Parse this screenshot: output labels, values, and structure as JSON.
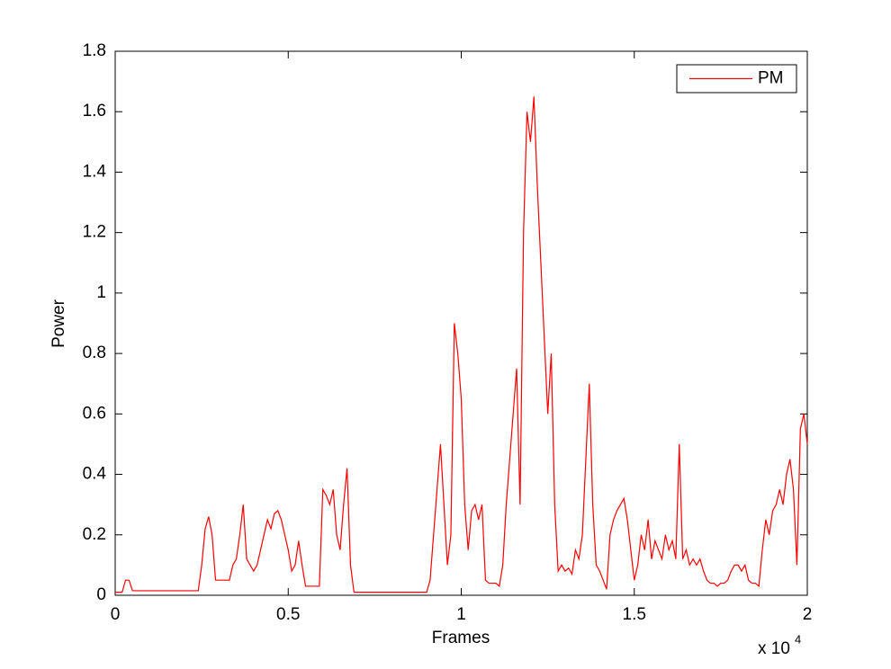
{
  "chart_data": {
    "type": "line",
    "xlabel": "Frames",
    "ylabel": "Power",
    "x_multiplier": {
      "base": "x 10",
      "exponent": "4"
    },
    "x": [
      0,
      0.01,
      0.02,
      0.03,
      0.04,
      0.05,
      0.06,
      0.07,
      0.08,
      0.09,
      0.1,
      0.11,
      0.12,
      0.13,
      0.14,
      0.15,
      0.16,
      0.17,
      0.18,
      0.19,
      0.2,
      0.21,
      0.22,
      0.23,
      0.24,
      0.25,
      0.26,
      0.27,
      0.28,
      0.29,
      0.3,
      0.31,
      0.32,
      0.33,
      0.34,
      0.35,
      0.36,
      0.37,
      0.38,
      0.39,
      0.4,
      0.41,
      0.42,
      0.43,
      0.44,
      0.45,
      0.46,
      0.47,
      0.48,
      0.49,
      0.5,
      0.51,
      0.52,
      0.53,
      0.54,
      0.55,
      0.56,
      0.57,
      0.58,
      0.59,
      0.6,
      0.61,
      0.62,
      0.63,
      0.64,
      0.65,
      0.66,
      0.67,
      0.68,
      0.69,
      0.7,
      0.71,
      0.72,
      0.73,
      0.74,
      0.75,
      0.76,
      0.77,
      0.78,
      0.79,
      0.8,
      0.81,
      0.82,
      0.83,
      0.84,
      0.85,
      0.86,
      0.87,
      0.88,
      0.89,
      0.9,
      0.91,
      0.92,
      0.93,
      0.94,
      0.95,
      0.96,
      0.97,
      0.98,
      0.99,
      1,
      1.01,
      1.02,
      1.03,
      1.04,
      1.05,
      1.06,
      1.07,
      1.08,
      1.09,
      1.1,
      1.11,
      1.12,
      1.13,
      1.14,
      1.15,
      1.16,
      1.17,
      1.18,
      1.19,
      1.2,
      1.21,
      1.22,
      1.23,
      1.24,
      1.25,
      1.26,
      1.27,
      1.28,
      1.29,
      1.3,
      1.31,
      1.32,
      1.33,
      1.34,
      1.35,
      1.36,
      1.37,
      1.38,
      1.39,
      1.4,
      1.41,
      1.42,
      1.43,
      1.44,
      1.45,
      1.46,
      1.47,
      1.48,
      1.49,
      1.5,
      1.51,
      1.52,
      1.53,
      1.54,
      1.55,
      1.56,
      1.57,
      1.58,
      1.59,
      1.6,
      1.61,
      1.62,
      1.63,
      1.64,
      1.65,
      1.66,
      1.67,
      1.68,
      1.69,
      1.7,
      1.71,
      1.72,
      1.73,
      1.74,
      1.75,
      1.76,
      1.77,
      1.78,
      1.79,
      1.8,
      1.81,
      1.82,
      1.83,
      1.84,
      1.85,
      1.86,
      1.87,
      1.88,
      1.89,
      1.9,
      1.91,
      1.92,
      1.93,
      1.94,
      1.95,
      1.96,
      1.97,
      1.98,
      1.99,
      2
    ],
    "series": [
      {
        "name": "PM",
        "color": "#ff0000",
        "values": [
          0.01,
          0.01,
          0.01,
          0.05,
          0.05,
          0.015,
          0.015,
          0.015,
          0.015,
          0.015,
          0.015,
          0.015,
          0.015,
          0.015,
          0.015,
          0.015,
          0.015,
          0.015,
          0.015,
          0.015,
          0.015,
          0.015,
          0.015,
          0.015,
          0.015,
          0.1,
          0.22,
          0.26,
          0.2,
          0.05,
          0.05,
          0.05,
          0.05,
          0.05,
          0.1,
          0.12,
          0.2,
          0.3,
          0.12,
          0.1,
          0.08,
          0.1,
          0.15,
          0.2,
          0.25,
          0.22,
          0.27,
          0.28,
          0.25,
          0.2,
          0.15,
          0.08,
          0.1,
          0.18,
          0.1,
          0.03,
          0.03,
          0.03,
          0.03,
          0.03,
          0.35,
          0.33,
          0.3,
          0.35,
          0.2,
          0.15,
          0.3,
          0.42,
          0.1,
          0.01,
          0.01,
          0.01,
          0.01,
          0.01,
          0.01,
          0.01,
          0.01,
          0.01,
          0.01,
          0.01,
          0.01,
          0.01,
          0.01,
          0.01,
          0.01,
          0.01,
          0.01,
          0.01,
          0.01,
          0.01,
          0.01,
          0.05,
          0.2,
          0.35,
          0.5,
          0.3,
          0.1,
          0.2,
          0.9,
          0.8,
          0.65,
          0.3,
          0.15,
          0.28,
          0.3,
          0.25,
          0.3,
          0.05,
          0.04,
          0.04,
          0.04,
          0.03,
          0.1,
          0.3,
          0.45,
          0.6,
          0.75,
          0.3,
          1.2,
          1.6,
          1.5,
          1.65,
          1.35,
          1.1,
          0.85,
          0.6,
          0.8,
          0.3,
          0.08,
          0.1,
          0.08,
          0.09,
          0.07,
          0.15,
          0.12,
          0.2,
          0.45,
          0.7,
          0.3,
          0.1,
          0.08,
          0.05,
          0.02,
          0.2,
          0.25,
          0.28,
          0.3,
          0.32,
          0.25,
          0.15,
          0.05,
          0.1,
          0.2,
          0.15,
          0.25,
          0.12,
          0.18,
          0.15,
          0.12,
          0.2,
          0.15,
          0.18,
          0.12,
          0.5,
          0.12,
          0.15,
          0.1,
          0.12,
          0.1,
          0.12,
          0.08,
          0.05,
          0.04,
          0.04,
          0.03,
          0.04,
          0.04,
          0.05,
          0.08,
          0.1,
          0.1,
          0.08,
          0.1,
          0.05,
          0.04,
          0.04,
          0.03,
          0.15,
          0.25,
          0.2,
          0.28,
          0.3,
          0.35,
          0.3,
          0.4,
          0.45,
          0.35,
          0.1,
          0.55,
          0.6,
          0.5
        ]
      }
    ],
    "xlim": [
      0,
      2
    ],
    "xticks": [
      0,
      0.5,
      1,
      1.5,
      2
    ],
    "ylim": [
      0,
      1.8
    ],
    "yticks": [
      0,
      0.2,
      0.4,
      0.6,
      0.8,
      1,
      1.2,
      1.4,
      1.6,
      1.8
    ],
    "grid": false,
    "legend": "upper right"
  }
}
